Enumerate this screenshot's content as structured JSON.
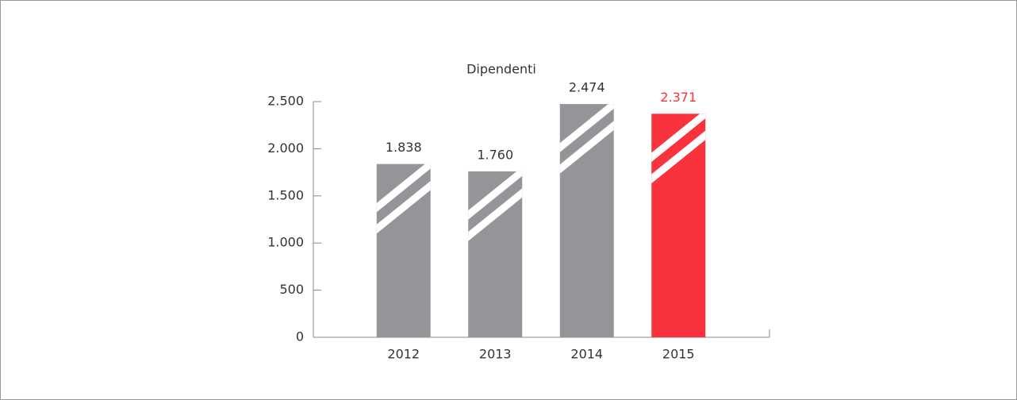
{
  "chart_data": {
    "type": "bar",
    "title": "Dipendenti",
    "categories": [
      "2012",
      "2013",
      "2014",
      "2015"
    ],
    "values": [
      1838,
      1760,
      2474,
      2371
    ],
    "value_labels": [
      "1.838",
      "1.760",
      "2.474",
      "2.371"
    ],
    "colors": [
      "#939598",
      "#939598",
      "#939598",
      "#f9333e"
    ],
    "value_label_colors": [
      "#333333",
      "#333333",
      "#333333",
      "#f9333e"
    ],
    "ylim": [
      0,
      2500
    ],
    "yticks": [
      0,
      500,
      {
        "value": 1000,
        "label": "1.000"
      },
      {
        "value": 1500,
        "label": "1.500"
      },
      {
        "value": 2000,
        "label": "2.000"
      },
      {
        "value": 2500,
        "label": "2.500"
      }
    ]
  }
}
